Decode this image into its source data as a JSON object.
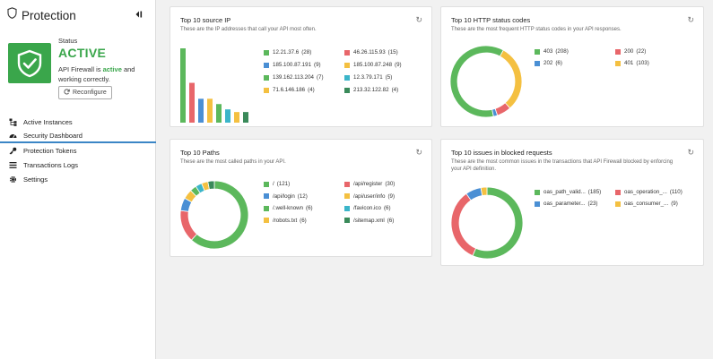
{
  "sidebar": {
    "brand": "Protection",
    "status_label": "Status",
    "status_value": "ACTIVE",
    "status_desc_prefix": "API Firewall is ",
    "status_desc_active": "active",
    "status_desc_suffix": " and working correctly.",
    "reconfigure_label": "Reconfigure",
    "nav": [
      {
        "label": "Active Instances",
        "icon": "sitemap-icon"
      },
      {
        "label": "Security Dashboard",
        "icon": "dashboard-icon",
        "active": true
      },
      {
        "label": "Protection Tokens",
        "icon": "key-icon"
      },
      {
        "label": "Transactions Logs",
        "icon": "list-icon"
      },
      {
        "label": "Settings",
        "icon": "gear-icon"
      }
    ]
  },
  "colors": {
    "active_green": "#3aa64b",
    "green": "#5cb85c",
    "red": "#e8666a",
    "blue": "#4a8fd4",
    "yellow": "#f4c041",
    "cyan": "#3bb5c9",
    "dkgreen": "#3a8a5a",
    "accent": "#3b86c6"
  },
  "cards": {
    "source_ip": {
      "title": "Top 10 source IP",
      "subtitle": "These are the IP addresses that call your API most often.",
      "legend": [
        {
          "label": "12.21.37.6",
          "count": "(28)",
          "color": "green"
        },
        {
          "label": "46.26.115.93",
          "count": "(15)",
          "color": "red"
        },
        {
          "label": "185.100.87.191",
          "count": "(9)",
          "color": "blue"
        },
        {
          "label": "185.100.87.248",
          "count": "(9)",
          "color": "yellow"
        },
        {
          "label": "139.162.113.204",
          "count": "(7)",
          "color": "green"
        },
        {
          "label": "12.3.79.171",
          "count": "(5)",
          "color": "cyan"
        },
        {
          "label": "71.6.146.186",
          "count": "(4)",
          "color": "yellow"
        },
        {
          "label": "213.32.122.82",
          "count": "(4)",
          "color": "dkgreen"
        }
      ]
    },
    "http_status": {
      "title": "Top 10 HTTP status codes",
      "subtitle": "These are the most frequent HTTP status codes in your API responses.",
      "legend": [
        {
          "label": "403",
          "count": "(208)",
          "color": "green"
        },
        {
          "label": "200",
          "count": "(22)",
          "color": "red"
        },
        {
          "label": "202",
          "count": "(6)",
          "color": "blue"
        },
        {
          "label": "401",
          "count": "(103)",
          "color": "yellow"
        }
      ]
    },
    "paths": {
      "title": "Top 10 Paths",
      "subtitle": "These are the most called paths in your API.",
      "legend": [
        {
          "label": "/",
          "count": "(121)",
          "color": "green"
        },
        {
          "label": "/api/register",
          "count": "(30)",
          "color": "red"
        },
        {
          "label": "/api/login",
          "count": "(12)",
          "color": "blue"
        },
        {
          "label": "/api/user/info",
          "count": "(9)",
          "color": "yellow"
        },
        {
          "label": "/.well-known",
          "count": "(6)",
          "color": "green"
        },
        {
          "label": "/favicon.ico",
          "count": "(6)",
          "color": "cyan"
        },
        {
          "label": "/robots.txt",
          "count": "(6)",
          "color": "yellow"
        },
        {
          "label": "/sitemap.xml",
          "count": "(6)",
          "color": "dkgreen"
        }
      ]
    },
    "issues": {
      "title": "Top 10 issues in blocked requests",
      "subtitle": "These are the most common issues in the transactions that API Firewall blocked by enforcing your API definition.",
      "legend": [
        {
          "label": "oas_path_valid...",
          "count": "(185)",
          "color": "green"
        },
        {
          "label": "oas_operation_...",
          "count": "(110)",
          "color": "red"
        },
        {
          "label": "oas_parameter...",
          "count": "(23)",
          "color": "blue"
        },
        {
          "label": "oas_consumer_...",
          "count": "(9)",
          "color": "yellow"
        }
      ]
    }
  },
  "chart_data": [
    {
      "type": "bar",
      "title": "Top 10 source IP",
      "categories": [
        "12.21.37.6",
        "46.26.115.93",
        "185.100.87.191",
        "185.100.87.248",
        "139.162.113.204",
        "12.3.79.171",
        "71.6.146.186",
        "213.32.122.82"
      ],
      "values": [
        28,
        15,
        9,
        9,
        7,
        5,
        4,
        4
      ]
    },
    {
      "type": "pie",
      "title": "Top 10 HTTP status codes",
      "categories": [
        "403",
        "401",
        "200",
        "202"
      ],
      "values": [
        208,
        103,
        22,
        6
      ]
    },
    {
      "type": "pie",
      "title": "Top 10 Paths",
      "categories": [
        "/",
        "/api/register",
        "/api/login",
        "/api/user/info",
        "/.well-known",
        "/favicon.ico",
        "/robots.txt",
        "/sitemap.xml"
      ],
      "values": [
        121,
        30,
        12,
        9,
        6,
        6,
        6,
        6
      ]
    },
    {
      "type": "pie",
      "title": "Top 10 issues in blocked requests",
      "categories": [
        "oas_path_valid...",
        "oas_operation_...",
        "oas_parameter...",
        "oas_consumer_..."
      ],
      "values": [
        185,
        110,
        23,
        9
      ]
    }
  ]
}
